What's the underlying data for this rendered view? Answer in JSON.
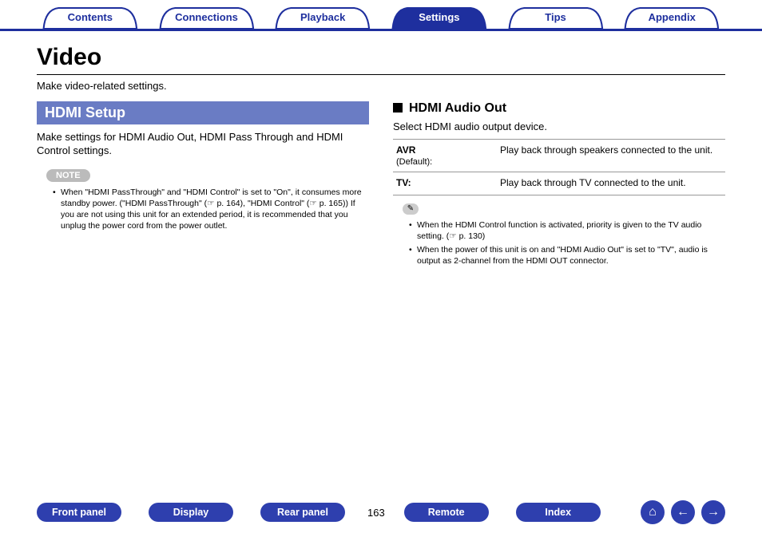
{
  "tabs": {
    "items": [
      "Contents",
      "Connections",
      "Playback",
      "Settings",
      "Tips",
      "Appendix"
    ],
    "active_index": 3,
    "fill_inactive": "#ffffff",
    "fill_active": "#1e2f9e",
    "stroke": "#1e2f9e"
  },
  "title": "Video",
  "intro": "Make video-related settings.",
  "left": {
    "bar": "HDMI Setup",
    "desc": "Make settings for HDMI Audio Out, HDMI Pass Through and HDMI Control settings.",
    "note_label": "NOTE",
    "note_bullets": [
      "When \"HDMI PassThrough\" and \"HDMI Control\" is set to \"On\", it consumes more standby power. (\"HDMI PassThrough\" (☞ p. 164), \"HDMI Control\" (☞ p. 165)) If you are not using this unit for an extended period, it is recommended that you unplug the power cord from the power outlet."
    ]
  },
  "right": {
    "heading": "HDMI Audio Out",
    "intro": "Select HDMI audio output device.",
    "options": [
      {
        "key": "AVR",
        "sub": "(Default):",
        "val": "Play back through speakers connected to the unit."
      },
      {
        "key": "TV:",
        "sub": "",
        "val": "Play back through TV connected to the unit."
      }
    ],
    "tip_icon": "✎",
    "tip_bullets": [
      "When the HDMI Control function is activated, priority is given to the TV audio setting.  (☞ p. 130)",
      "When the power of this unit is on and \"HDMI Audio Out\" is set to \"TV\", audio is output as 2-channel from the HDMI OUT connector."
    ]
  },
  "bottom": {
    "buttons": [
      "Front panel",
      "Display",
      "Rear panel"
    ],
    "page": "163",
    "buttons2": [
      "Remote",
      "Index"
    ],
    "nav": {
      "home": "⌂",
      "prev": "←",
      "next": "→"
    }
  },
  "colors": {
    "primary": "#1e2f9e",
    "section_bar": "#6a7cc4",
    "button": "#2e3fae",
    "pill": "#bbbbbb"
  }
}
